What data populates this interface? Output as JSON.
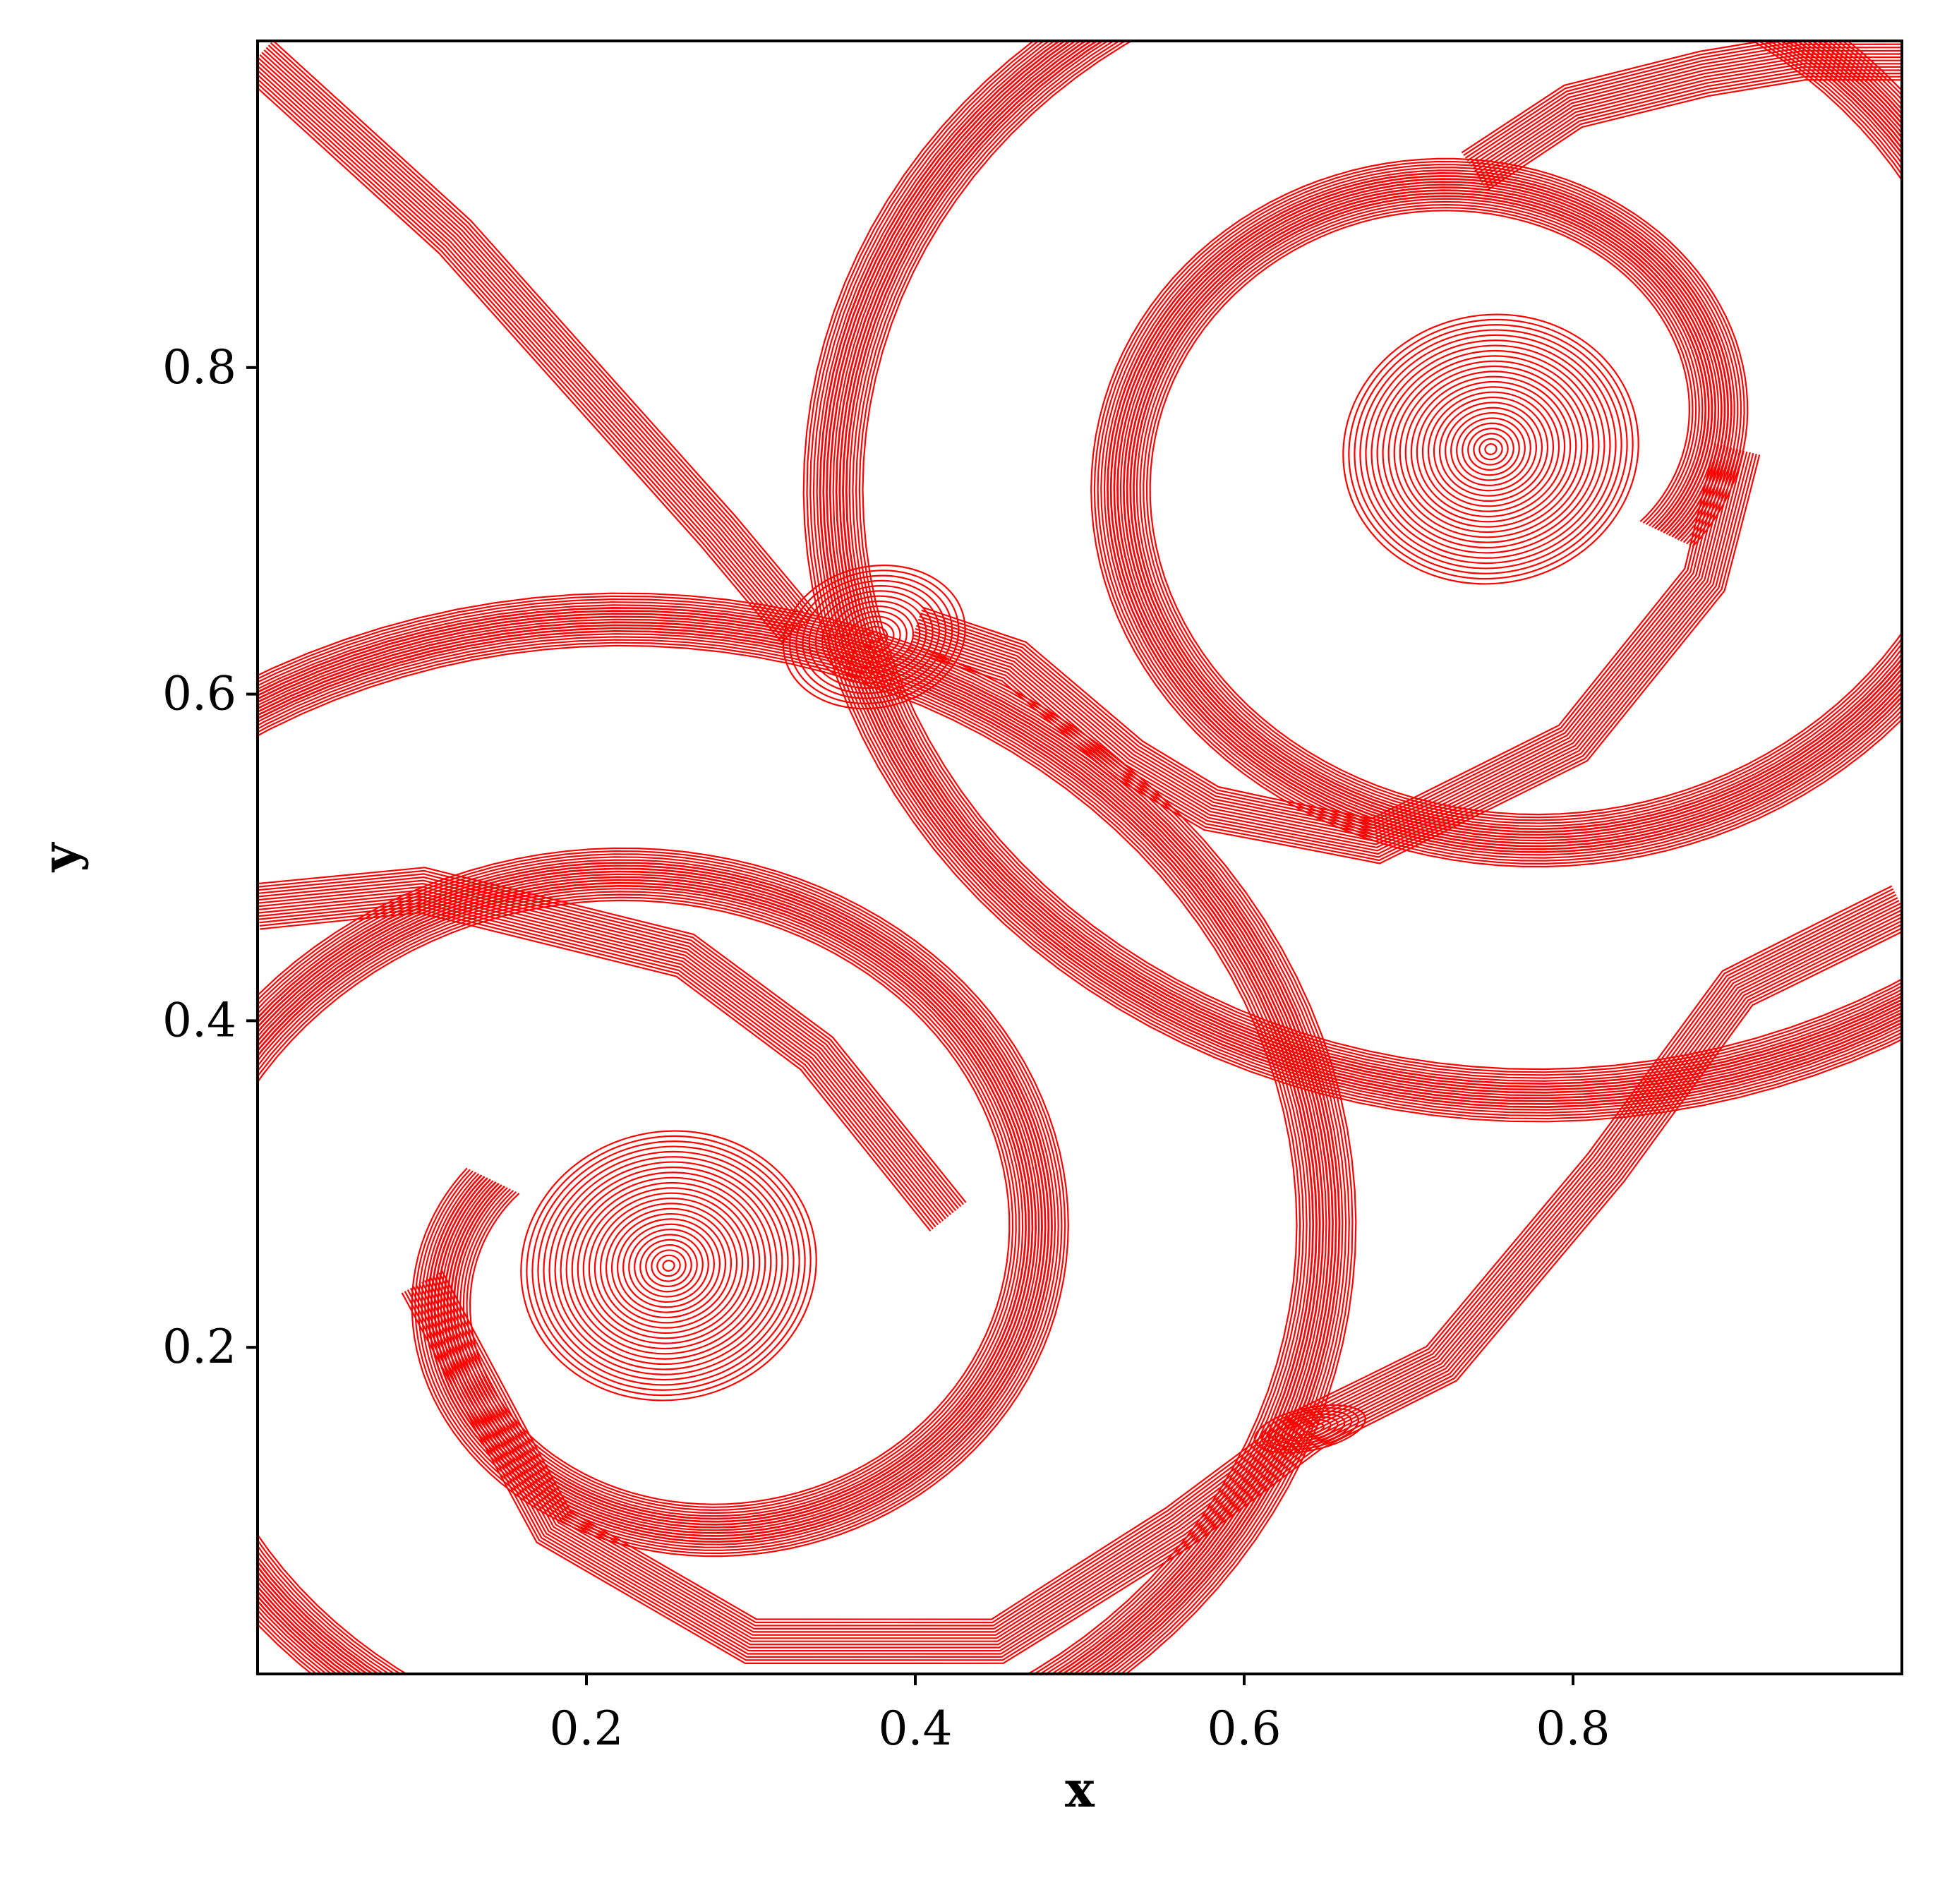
{
  "chart_data": {
    "type": "contour",
    "title": "",
    "xlabel": "x",
    "ylabel": "y",
    "xlim": [
      0,
      1
    ],
    "ylim": [
      0,
      1
    ],
    "xticks": [
      {
        "value": 0.2,
        "label": "0.2"
      },
      {
        "value": 0.4,
        "label": "0.4"
      },
      {
        "value": 0.6,
        "label": "0.6"
      },
      {
        "value": 0.8,
        "label": "0.8"
      }
    ],
    "yticks": [
      {
        "value": 0.2,
        "label": "0.2"
      },
      {
        "value": 0.4,
        "label": "0.4"
      },
      {
        "value": 0.6,
        "label": "0.6"
      },
      {
        "value": 0.8,
        "label": "0.8"
      }
    ],
    "grid": false,
    "line_color": "#ff0000",
    "vortices": [
      {
        "x": 0.75,
        "y": 0.75
      },
      {
        "x": 0.25,
        "y": 0.25
      },
      {
        "x": 0.375,
        "y": 0.635
      },
      {
        "x": 0.64,
        "y": 0.15
      }
    ],
    "shear_layers": [
      {
        "points": [
          [
            0.0,
            0.99
          ],
          [
            0.12,
            0.88
          ],
          [
            0.2,
            0.79
          ],
          [
            0.28,
            0.7
          ],
          [
            0.33,
            0.64
          ]
        ]
      },
      {
        "points": [
          [
            0.4,
            0.64
          ],
          [
            0.46,
            0.62
          ],
          [
            0.53,
            0.56
          ],
          [
            0.58,
            0.53
          ],
          [
            0.68,
            0.51
          ],
          [
            0.8,
            0.57
          ],
          [
            0.88,
            0.67
          ],
          [
            0.9,
            0.75
          ]
        ]
      },
      {
        "points": [
          [
            0.74,
            0.92
          ],
          [
            0.8,
            0.96
          ],
          [
            0.88,
            0.98
          ],
          [
            0.94,
            0.99
          ],
          [
            1.0,
            0.99
          ]
        ]
      },
      {
        "points": [
          [
            0.0,
            0.47
          ],
          [
            0.1,
            0.48
          ],
          [
            0.26,
            0.44
          ],
          [
            0.34,
            0.38
          ],
          [
            0.42,
            0.28
          ]
        ]
      },
      {
        "points": [
          [
            0.1,
            0.24
          ],
          [
            0.18,
            0.09
          ],
          [
            0.3,
            0.02
          ],
          [
            0.45,
            0.02
          ],
          [
            0.56,
            0.09
          ],
          [
            0.64,
            0.15
          ],
          [
            0.72,
            0.19
          ],
          [
            0.82,
            0.31
          ],
          [
            0.9,
            0.42
          ],
          [
            1.0,
            0.47
          ]
        ]
      }
    ]
  }
}
